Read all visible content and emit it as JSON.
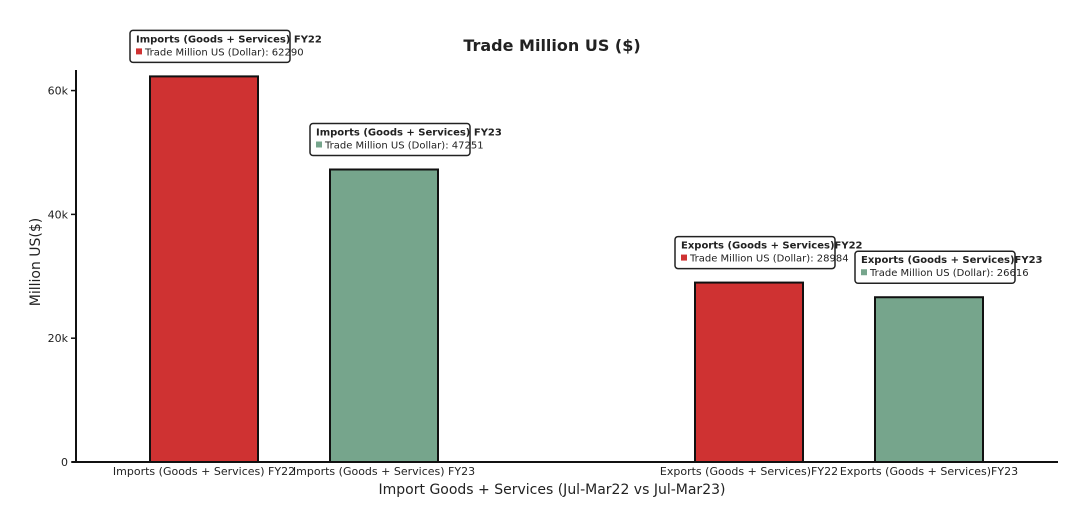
{
  "chart_data": {
    "type": "bar",
    "title": "Trade Million US ($)",
    "xlabel": "Import Goods + Services (Jul-Mar22 vs Jul-Mar23)",
    "ylabel": "Million US($)",
    "ylim": [
      0,
      63000
    ],
    "yticks": [
      0,
      20000,
      40000,
      60000
    ],
    "ytick_labels": [
      "0",
      "20k",
      "40k",
      "60k"
    ],
    "grid": false,
    "value_label": "Trade Million US (Dollar)",
    "bars": [
      {
        "category": "Imports (Goods + Services) FY22",
        "value": 62290,
        "color": "#cf3232",
        "group": 0,
        "tooltip_title": "Imports (Goods + Services) FY22",
        "tooltip_text": "Trade Million US (Dollar): 62290"
      },
      {
        "category": "Imports (Goods + Services) FY23",
        "value": 47251,
        "color": "#76a58c",
        "group": 0,
        "tooltip_title": "Imports (Goods + Services) FY23",
        "tooltip_text": "Trade Million US (Dollar): 47251"
      },
      {
        "category": "Exports (Goods + Services)FY22",
        "value": 28984,
        "color": "#cf3232",
        "group": 1,
        "tooltip_title": "Exports (Goods + Services)FY22",
        "tooltip_text": "Trade Million US (Dollar): 28984"
      },
      {
        "category": "Exports (Goods + Services)FY23",
        "value": 26616,
        "color": "#76a58c",
        "group": 1,
        "tooltip_title": "Exports (Goods + Services)FY23",
        "tooltip_text": "Trade Million US (Dollar): 26616"
      }
    ]
  }
}
